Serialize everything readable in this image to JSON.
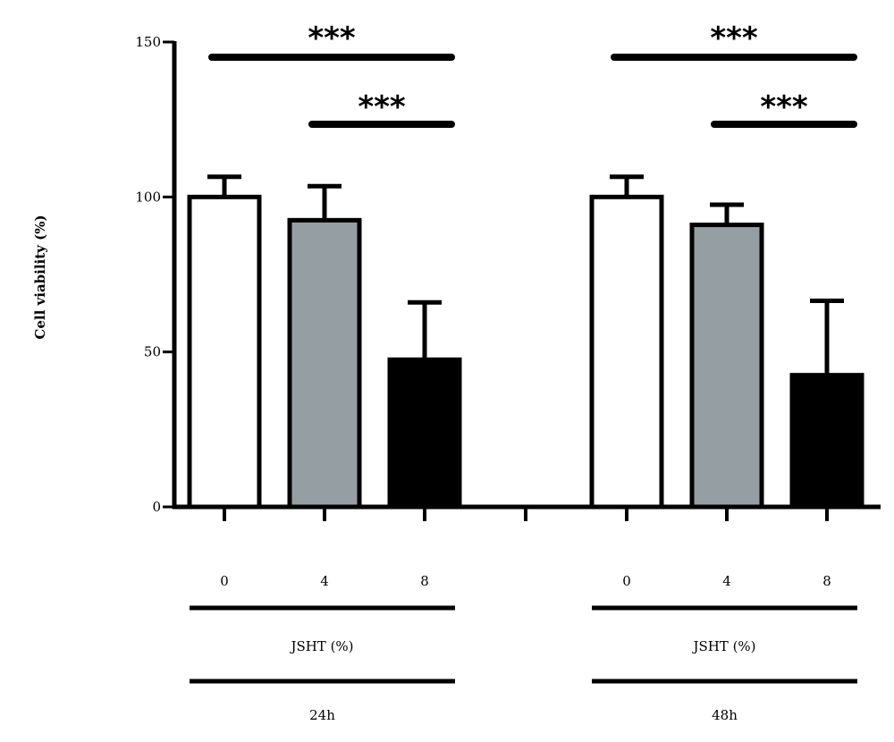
{
  "chart_data": {
    "type": "bar",
    "xlabel": "",
    "ylabel": "Cell viability (%)",
    "ylim": [
      0,
      150
    ],
    "yticks": [
      0,
      50,
      100,
      150
    ],
    "grid": false,
    "groups": [
      {
        "time_label": "24h",
        "treatment_label": "JSHT (%)",
        "bars": [
          {
            "category": "0",
            "value": 100,
            "error": 6.5,
            "fill": "#ffffff"
          },
          {
            "category": "4",
            "value": 92.5,
            "error": 11,
            "fill": "#949ea3"
          },
          {
            "category": "8",
            "value": 47.5,
            "error": 18.5,
            "fill": "#000000"
          }
        ],
        "significance": [
          {
            "label": "***",
            "from": "0",
            "to": "8"
          },
          {
            "label": "***",
            "from": "4",
            "to": "8"
          }
        ]
      },
      {
        "time_label": "48h",
        "treatment_label": "JSHT (%)",
        "bars": [
          {
            "category": "0",
            "value": 100,
            "error": 6.5,
            "fill": "#ffffff"
          },
          {
            "category": "4",
            "value": 91,
            "error": 6.5,
            "fill": "#949ea3"
          },
          {
            "category": "8",
            "value": 42.5,
            "error": 24,
            "fill": "#000000"
          }
        ],
        "significance": [
          {
            "label": "***",
            "from": "0",
            "to": "8"
          },
          {
            "label": "***",
            "from": "4",
            "to": "8"
          }
        ]
      }
    ]
  }
}
